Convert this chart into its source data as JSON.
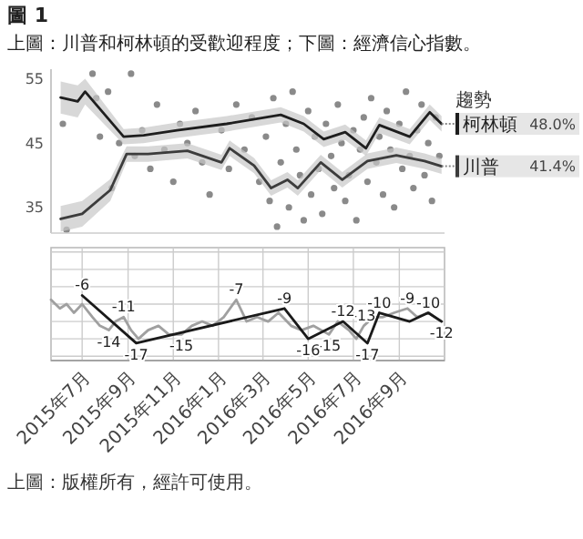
{
  "chart_data": [
    {
      "type": "line",
      "title": "圖 1",
      "subtitle": "上圖：川普和柯林頓的受歡迎程度；下圖：經濟信心指數。",
      "xlim": [
        "2015-05-20",
        "2016-11-01"
      ],
      "ylim": [
        31,
        56.5
      ],
      "yticks": [
        35,
        45,
        55
      ],
      "tick_labels": "y",
      "legend": "right",
      "legend_title": "趨勢",
      "series": [
        {
          "type": "scatter",
          "color": "#8a8a8a",
          "x": [
            "2015-06-05",
            "2015-06-10",
            "2015-07-15",
            "2015-07-20",
            "2015-07-25",
            "2015-08-05",
            "2015-08-10",
            "2015-08-20",
            "2015-09-05",
            "2015-09-10",
            "2015-09-20",
            "2015-10-01",
            "2015-10-10",
            "2015-10-20",
            "2015-11-01",
            "2015-11-10",
            "2015-11-20",
            "2015-12-01",
            "2015-12-10",
            "2015-12-20",
            "2016-01-05",
            "2016-01-15",
            "2016-01-25",
            "2016-02-05",
            "2016-02-15",
            "2016-02-25",
            "2016-03-05",
            "2016-03-10",
            "2016-03-15",
            "2016-03-20",
            "2016-03-25",
            "2016-04-01",
            "2016-04-05",
            "2016-04-10",
            "2016-04-15",
            "2016-04-20",
            "2016-04-25",
            "2016-05-01",
            "2016-05-05",
            "2016-05-10",
            "2016-05-15",
            "2016-05-20",
            "2016-05-25",
            "2016-06-01",
            "2016-06-05",
            "2016-06-10",
            "2016-06-15",
            "2016-06-20",
            "2016-06-25",
            "2016-07-01",
            "2016-07-05",
            "2016-07-10",
            "2016-07-15",
            "2016-07-20",
            "2016-07-25",
            "2016-08-01",
            "2016-08-05",
            "2016-08-10",
            "2016-08-15",
            "2016-08-20",
            "2016-08-25",
            "2016-09-01",
            "2016-09-05",
            "2016-09-10",
            "2016-09-15",
            "2016-09-20",
            "2016-09-25",
            "2016-10-01",
            "2016-10-05",
            "2016-10-10",
            "2016-10-15",
            "2016-10-20",
            "2016-10-25"
          ],
          "values": [
            48,
            31.5,
            55.8,
            52,
            46,
            53,
            38,
            45,
            55.8,
            43,
            47,
            41,
            51,
            44,
            39,
            48,
            45,
            50,
            42,
            37,
            47,
            41,
            51,
            44,
            49,
            39,
            46,
            36,
            52,
            32,
            42,
            48,
            35,
            53,
            44,
            40,
            33,
            50,
            37,
            46,
            41,
            34,
            48,
            43,
            38,
            51,
            45,
            36,
            40,
            47,
            33,
            44,
            49,
            39,
            52,
            42,
            46,
            37,
            50,
            44,
            35,
            48,
            41,
            53,
            43,
            38,
            47,
            51,
            40,
            45,
            36,
            49,
            43
          ]
        },
        {
          "name": "柯林頓",
          "color": "#1e1e1e",
          "x": [
            "2015-06-02",
            "2015-06-25",
            "2015-07-05",
            "2015-08-26",
            "2015-09-22",
            "2015-11-06",
            "2016-01-12",
            "2016-03-25",
            "2016-04-25",
            "2016-05-22",
            "2016-06-20",
            "2016-07-18",
            "2016-08-05",
            "2016-09-15",
            "2016-10-12",
            "2016-10-28"
          ],
          "values": [
            52.1,
            51.5,
            53.0,
            46.0,
            46.2,
            47.0,
            48.0,
            49.4,
            48.0,
            45.6,
            46.7,
            44.2,
            47.8,
            46.0,
            49.8,
            48.0
          ],
          "lower": [
            49.6,
            49.0,
            51.0,
            44.8,
            45.0,
            45.8,
            46.8,
            48.2,
            46.8,
            44.4,
            45.5,
            43.0,
            46.6,
            44.8,
            48.6,
            46.8
          ],
          "upper": [
            54.6,
            54.0,
            55.0,
            47.2,
            47.4,
            48.2,
            49.2,
            50.6,
            49.2,
            46.8,
            47.9,
            45.4,
            49.0,
            47.2,
            51.0,
            49.2
          ]
        },
        {
          "name": "川普",
          "color": "#3c3c3c",
          "x": [
            "2015-06-02",
            "2015-07-01",
            "2015-08-08",
            "2015-08-30",
            "2015-09-28",
            "2015-11-20",
            "2016-01-05",
            "2016-01-16",
            "2016-02-18",
            "2016-03-12",
            "2016-04-03",
            "2016-04-17",
            "2016-05-18",
            "2016-06-16",
            "2016-07-20",
            "2016-08-28",
            "2016-10-05",
            "2016-10-28"
          ],
          "values": [
            33.2,
            34.0,
            37.7,
            43.3,
            43.3,
            43.8,
            42.0,
            44.2,
            41.5,
            38.0,
            39.3,
            38.0,
            42.0,
            39.3,
            42.2,
            43.1,
            42.2,
            41.4
          ],
          "lower": [
            31.2,
            32.0,
            36.0,
            42.1,
            42.1,
            42.6,
            40.8,
            43.0,
            40.3,
            36.8,
            38.1,
            36.8,
            40.8,
            38.1,
            41.0,
            41.9,
            41.0,
            40.2
          ],
          "upper": [
            35.2,
            36.0,
            39.4,
            44.5,
            44.5,
            45.0,
            43.2,
            45.4,
            42.7,
            39.2,
            40.5,
            39.2,
            43.2,
            40.5,
            43.4,
            44.3,
            43.4,
            42.6
          ]
        }
      ],
      "annotations": [
        "48.0%",
        "41.4%"
      ]
    },
    {
      "type": "line",
      "xlim": [
        "2015-05-20",
        "2016-11-01"
      ],
      "ylim": [
        -21,
        5
      ],
      "yticks": [
        {
          "value": 4,
          "label": null
        },
        {
          "value": 0,
          "label": null
        },
        {
          "value": -4,
          "label": null
        },
        {
          "value": -8,
          "label": null
        },
        {
          "value": -12,
          "label": null
        },
        {
          "value": -16,
          "label": null
        },
        {
          "value": -20,
          "label": null
        }
      ],
      "xticks": [
        {
          "value": "2015-07-01",
          "label": "2015年7月"
        },
        {
          "value": "2015-09-01",
          "label": "2015年9月"
        },
        {
          "value": "2015-11-01",
          "label": "2015年11月"
        },
        {
          "value": "2016-01-01",
          "label": "2016年1月"
        },
        {
          "value": "2016-03-01",
          "label": "2016年3月"
        },
        {
          "value": "2016-05-01",
          "label": "2016年5月"
        },
        {
          "value": "2016-07-01",
          "label": "2016年7月"
        },
        {
          "value": "2016-09-01",
          "label": "2016年9月"
        }
      ],
      "grid": true,
      "tick_labels": "x",
      "series": [
        {
          "color": "#a0a0a0",
          "x": [
            "2015-05-20",
            "2015-06-01",
            "2015-06-10",
            "2015-06-20",
            "2015-07-01",
            "2015-07-15",
            "2015-07-25",
            "2015-08-06",
            "2015-08-15",
            "2015-08-26",
            "2015-09-05",
            "2015-09-15",
            "2015-09-28",
            "2015-10-12",
            "2015-10-26",
            "2015-11-12",
            "2015-11-26",
            "2015-12-10",
            "2015-12-24",
            "2016-01-08",
            "2016-01-25",
            "2016-02-08",
            "2016-02-22",
            "2016-03-08",
            "2016-03-22",
            "2016-04-08",
            "2016-04-22",
            "2016-05-08",
            "2016-05-29",
            "2016-06-10",
            "2016-06-25",
            "2016-07-05",
            "2016-07-15",
            "2016-07-28",
            "2016-08-10",
            "2016-08-25",
            "2016-09-12",
            "2016-09-25",
            "2016-10-10",
            "2016-10-28"
          ],
          "values": [
            -7,
            -9,
            -8,
            -10,
            -8,
            -11,
            -13,
            -14,
            -12,
            -11,
            -14,
            -16,
            -14,
            -13,
            -15,
            -15,
            -13,
            -12,
            -13,
            -11,
            -7,
            -12,
            -11,
            -12,
            -10,
            -13,
            -14,
            -13,
            -15,
            -12,
            -14,
            -16,
            -13,
            -11,
            -11,
            -10,
            -9,
            -11,
            -10,
            -12
          ],
          "value_labels": [
            null,
            null,
            null,
            null,
            null,
            null,
            null,
            "-14",
            null,
            "-11",
            null,
            null,
            null,
            null,
            null,
            "-15",
            null,
            null,
            null,
            null,
            "-7",
            null,
            null,
            null,
            null,
            null,
            null,
            null,
            "-15",
            null,
            null,
            null,
            "-13",
            null,
            null,
            null,
            "-9",
            null,
            null,
            null
          ]
        },
        {
          "color": "#1a1a1a",
          "x": [
            "2015-07-01",
            "2015-09-12",
            "2016-03-30",
            "2016-05-01",
            "2016-06-17",
            "2016-07-20",
            "2016-08-05",
            "2016-09-15",
            "2016-10-10",
            "2016-10-28"
          ],
          "values": [
            -6,
            -17,
            -9,
            -16,
            -12,
            -17,
            -10,
            -12,
            -10,
            -12
          ],
          "value_labels": [
            "-6",
            "-17",
            "-9",
            "-16",
            "-12",
            "-17",
            "-10",
            null,
            "-10",
            "-12"
          ]
        }
      ],
      "annotations": [
        "上圖：版權所有，經許可使用。"
      ]
    }
  ]
}
